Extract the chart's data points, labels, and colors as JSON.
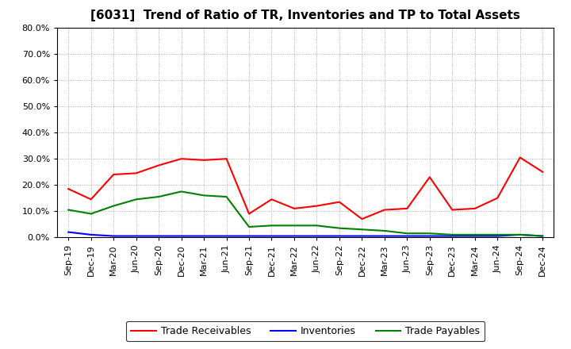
{
  "title": "[6031]  Trend of Ratio of TR, Inventories and TP to Total Assets",
  "x_labels": [
    "Sep-19",
    "Dec-19",
    "Mar-20",
    "Jun-20",
    "Sep-20",
    "Dec-20",
    "Mar-21",
    "Jun-21",
    "Sep-21",
    "Dec-21",
    "Mar-22",
    "Jun-22",
    "Sep-22",
    "Dec-22",
    "Mar-23",
    "Jun-23",
    "Sep-23",
    "Dec-23",
    "Mar-24",
    "Jun-24",
    "Sep-24",
    "Dec-24"
  ],
  "trade_receivables": [
    18.5,
    14.5,
    24.0,
    24.5,
    27.5,
    30.0,
    29.5,
    30.0,
    9.0,
    14.5,
    11.0,
    12.0,
    13.5,
    7.0,
    10.5,
    11.0,
    23.0,
    10.5,
    11.0,
    15.0,
    30.5,
    25.0
  ],
  "inventories": [
    2.0,
    1.0,
    0.5,
    0.5,
    0.5,
    0.5,
    0.5,
    0.5,
    0.5,
    0.5,
    0.5,
    0.5,
    0.5,
    0.5,
    0.5,
    0.5,
    0.5,
    0.5,
    0.5,
    0.5,
    1.0,
    0.5
  ],
  "trade_payables": [
    10.5,
    9.0,
    12.0,
    14.5,
    15.5,
    17.5,
    16.0,
    15.5,
    4.0,
    4.5,
    4.5,
    4.5,
    3.5,
    3.0,
    2.5,
    1.5,
    1.5,
    1.0,
    1.0,
    1.0,
    1.0,
    0.5
  ],
  "ylim": [
    0,
    80
  ],
  "yticks": [
    0,
    10,
    20,
    30,
    40,
    50,
    60,
    70,
    80
  ],
  "line_color_tr": "#ff0000",
  "line_color_inv": "#0000ff",
  "line_color_tp": "#008000",
  "background_color": "#ffffff",
  "plot_bg_color": "#ffffff",
  "grid_color": "#999999",
  "legend_labels": [
    "Trade Receivables",
    "Inventories",
    "Trade Payables"
  ],
  "title_fontsize": 11,
  "tick_fontsize": 8,
  "legend_fontsize": 9
}
